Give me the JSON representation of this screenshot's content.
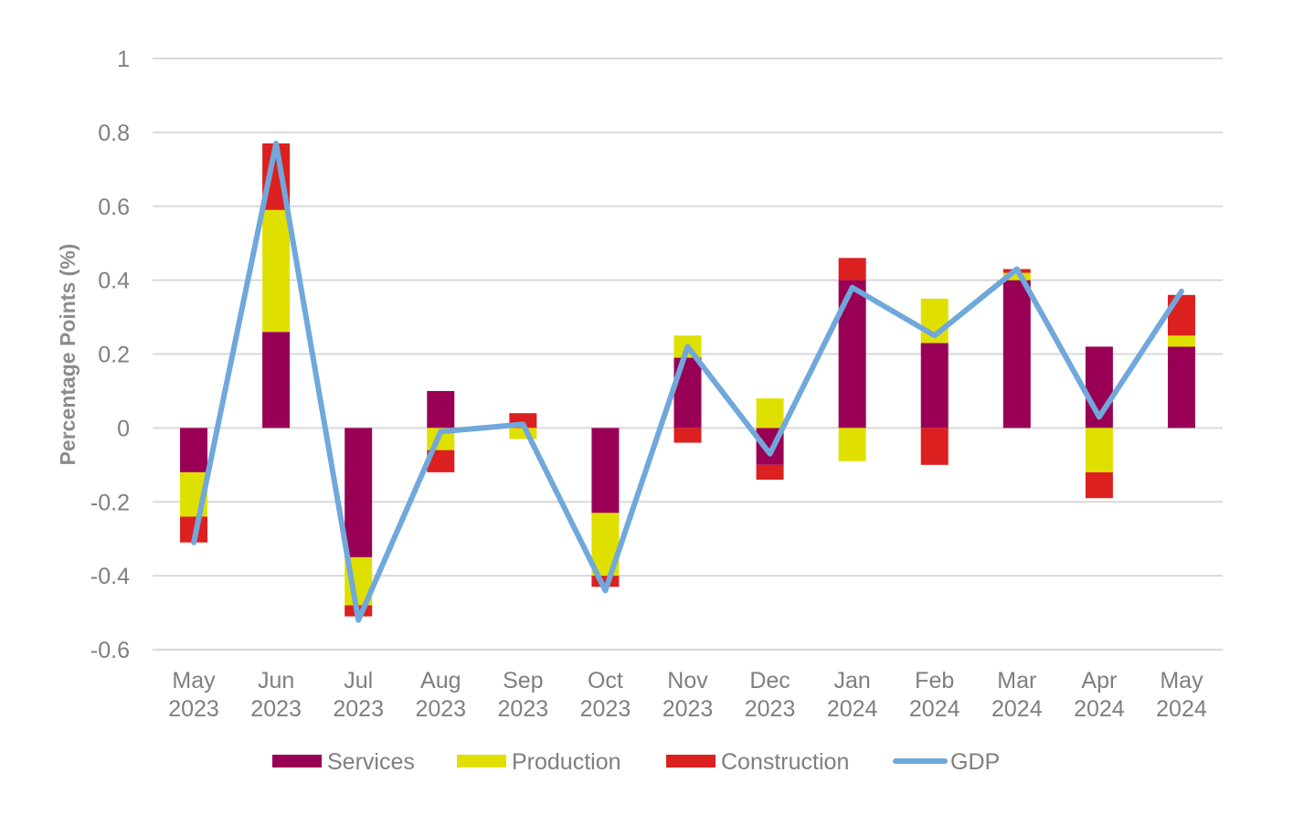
{
  "chart_data": {
    "type": "bar",
    "stacked": true,
    "categories": [
      [
        "May",
        "2023"
      ],
      [
        "Jun",
        "2023"
      ],
      [
        "Jul",
        "2023"
      ],
      [
        "Aug",
        "2023"
      ],
      [
        "Sep",
        "2023"
      ],
      [
        "Oct",
        "2023"
      ],
      [
        "Nov",
        "2023"
      ],
      [
        "Dec",
        "2023"
      ],
      [
        "Jan",
        "2024"
      ],
      [
        "Feb",
        "2024"
      ],
      [
        "Mar",
        "2024"
      ],
      [
        "Apr",
        "2024"
      ],
      [
        "May",
        "2024"
      ]
    ],
    "ylabel": "Percentage Points (%)",
    "ylim": [
      -0.6,
      1.0
    ],
    "yticks": [
      -0.6,
      -0.4,
      -0.2,
      0,
      0.2,
      0.4,
      0.6,
      0.8,
      1
    ],
    "ytick_labels": [
      "-0.6",
      "-0.4",
      "-0.2",
      "0",
      "0.2",
      "0.4",
      "0.6",
      "0.8",
      "1"
    ],
    "grid": true,
    "legend_position": "bottom",
    "series": [
      {
        "name": "Services",
        "kind": "bar",
        "color": "#990055",
        "values": [
          -0.12,
          0.26,
          -0.35,
          0.1,
          0.0,
          -0.23,
          0.19,
          -0.1,
          0.4,
          0.23,
          0.4,
          0.22,
          0.22
        ]
      },
      {
        "name": "Production",
        "kind": "bar",
        "color": "#e0e000",
        "values": [
          -0.12,
          0.33,
          -0.13,
          -0.06,
          -0.03,
          -0.17,
          0.06,
          0.08,
          -0.09,
          0.12,
          0.02,
          -0.12,
          0.03
        ]
      },
      {
        "name": "Construction",
        "kind": "bar",
        "color": "#dc2020",
        "values": [
          -0.07,
          0.18,
          -0.03,
          -0.06,
          0.04,
          -0.03,
          -0.04,
          -0.04,
          0.06,
          -0.1,
          0.01,
          -0.07,
          0.11
        ]
      },
      {
        "name": "GDP",
        "kind": "line",
        "color": "#70a8dc",
        "values": [
          -0.31,
          0.77,
          -0.52,
          -0.01,
          0.01,
          -0.44,
          0.22,
          -0.07,
          0.38,
          0.25,
          0.43,
          0.03,
          0.37
        ]
      }
    ]
  }
}
